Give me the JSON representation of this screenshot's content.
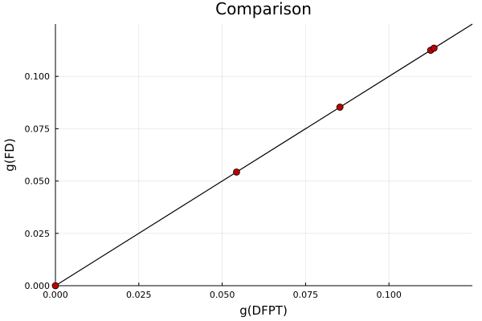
{
  "chart_data": {
    "type": "scatter",
    "title": "Comparison",
    "xlabel": "g(DFPT)",
    "ylabel": "g(FD)",
    "xlim": [
      0,
      0.125
    ],
    "ylim": [
      0,
      0.125
    ],
    "xticks": [
      0,
      0.025,
      0.05,
      0.075,
      0.1
    ],
    "yticks": [
      0,
      0.025,
      0.05,
      0.075,
      0.1
    ],
    "xtick_labels": [
      "0.000",
      "0.025",
      "0.050",
      "0.075",
      "0.100"
    ],
    "ytick_labels": [
      "0.000",
      "0.025",
      "0.050",
      "0.075",
      "0.100"
    ],
    "grid": true,
    "legend": "none",
    "series": [
      {
        "kind": "line",
        "x": [
          0,
          0.125
        ],
        "y": [
          0,
          0.125
        ],
        "color": "#000000"
      },
      {
        "kind": "scatter",
        "x": [
          0.0,
          0.0543,
          0.0853,
          0.1125,
          0.1135
        ],
        "y": [
          0.0,
          0.0543,
          0.0853,
          0.1125,
          0.1135
        ],
        "color": "#c00000"
      }
    ]
  }
}
